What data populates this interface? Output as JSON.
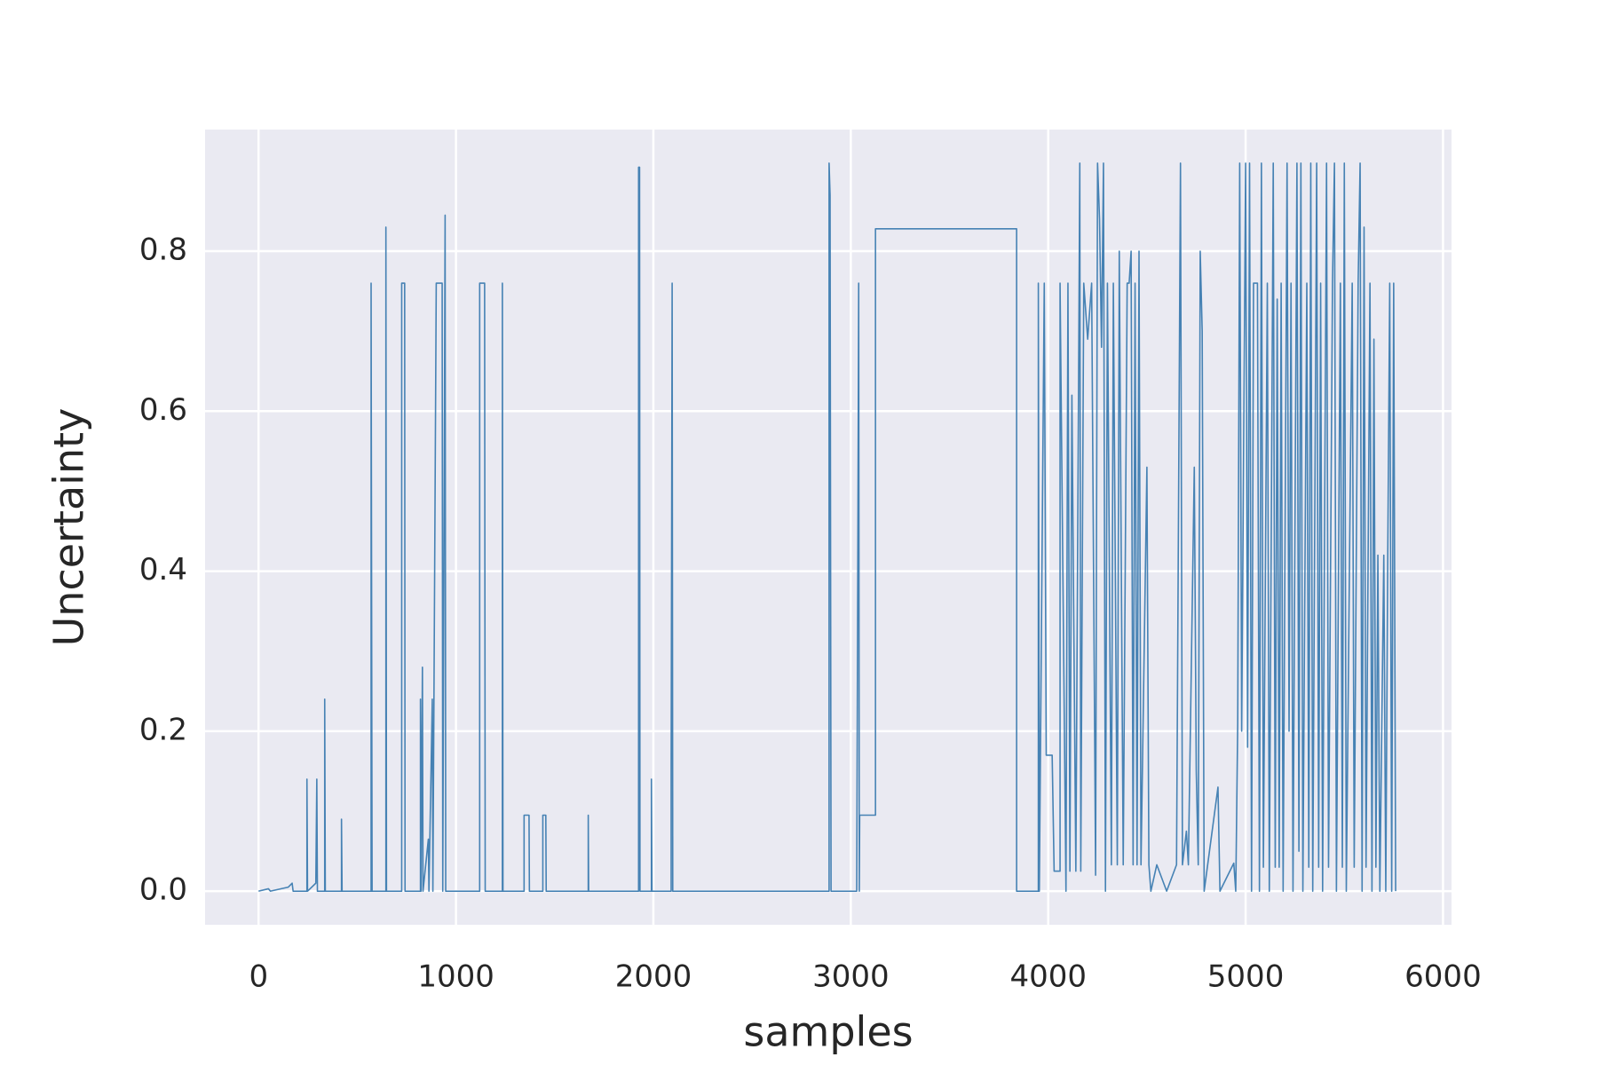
{
  "chart_data": {
    "type": "line",
    "xlabel": "samples",
    "ylabel": "Uncertainty",
    "xlim": [
      -271,
      6043
    ],
    "ylim": [
      -0.042,
      0.952
    ],
    "xticks": [
      0,
      1000,
      2000,
      3000,
      4000,
      5000,
      6000
    ],
    "yticks": [
      {
        "value": 0,
        "label": "0.0"
      },
      0.2,
      0.4,
      0.6,
      0.8
    ],
    "grid": true,
    "series": [
      {
        "color": "#4682b4",
        "x": [
          0,
          50,
          60,
          150,
          170,
          175,
          245,
          245,
          248,
          290,
          295,
          298,
          335,
          335,
          338,
          420,
          420,
          423,
          570,
          570,
          575,
          645,
          645,
          648,
          725,
          725,
          740,
          742,
          820,
          820,
          823,
          830,
          833,
          860,
          863,
          880,
          883,
          900,
          930,
          933,
          945,
          948,
          1120,
          1120,
          1145,
          1148,
          1235,
          1235,
          1238,
          1345,
          1345,
          1370,
          1372,
          1440,
          1440,
          1455,
          1457,
          1670,
          1670,
          1672,
          1925,
          1925,
          1930,
          1932,
          1990,
          1990,
          1993,
          2090,
          2090,
          2095,
          2098,
          2890,
          2890,
          2895,
          2900,
          3030,
          3040,
          3043,
          3045,
          3125,
          3125,
          3840,
          3840,
          3950,
          3950,
          3955,
          3980,
          3990,
          4020,
          4030,
          4060,
          4060,
          4090,
          4100,
          4110,
          4120,
          4140,
          4160,
          4165,
          4180,
          4200,
          4220,
          4240,
          4250,
          4260,
          4270,
          4280,
          4290,
          4300,
          4320,
          4330,
          4350,
          4360,
          4380,
          4400,
          4410,
          4420,
          4430,
          4440,
          4450,
          4460,
          4470,
          4500,
          4510,
          4520,
          4550,
          4600,
          4650,
          4670,
          4680,
          4700,
          4710,
          4740,
          4750,
          4760,
          4770,
          4780,
          4790,
          4860,
          4870,
          4940,
          4950,
          4960,
          4970,
          4980,
          5000,
          5010,
          5020,
          5030,
          5040,
          5060,
          5070,
          5080,
          5090,
          5110,
          5120,
          5140,
          5150,
          5160,
          5170,
          5180,
          5190,
          5210,
          5220,
          5230,
          5240,
          5260,
          5270,
          5280,
          5290,
          5310,
          5320,
          5330,
          5340,
          5360,
          5370,
          5380,
          5390,
          5410,
          5420,
          5440,
          5450,
          5460,
          5480,
          5490,
          5500,
          5510,
          5540,
          5550,
          5570,
          5580,
          5590,
          5600,
          5610,
          5630,
          5640,
          5650,
          5660,
          5670,
          5680,
          5700,
          5710,
          5720,
          5730,
          5740,
          5750,
          5760
        ],
        "values": [
          0,
          0.003,
          0,
          0.005,
          0.01,
          0,
          0,
          0.14,
          0,
          0.01,
          0.14,
          0,
          0,
          0.24,
          0,
          0,
          0.09,
          0,
          0,
          0.76,
          0,
          0,
          0.83,
          0,
          0,
          0.76,
          0.76,
          0,
          0,
          0.24,
          0,
          0.28,
          0,
          0.065,
          0,
          0.24,
          0,
          0.76,
          0.76,
          0,
          0.845,
          0,
          0,
          0.76,
          0.76,
          0,
          0,
          0.76,
          0,
          0,
          0.095,
          0.095,
          0,
          0,
          0.095,
          0.095,
          0,
          0,
          0.095,
          0,
          0,
          0.905,
          0.905,
          0,
          0,
          0.14,
          0,
          0,
          0.15,
          0.76,
          0,
          0,
          0.91,
          0.87,
          0,
          0,
          0.76,
          0,
          0.095,
          0.095,
          0.828,
          0.828,
          0,
          0,
          0.76,
          0,
          0.76,
          0.17,
          0.17,
          0.025,
          0.025,
          0.76,
          0,
          0.76,
          0.025,
          0.62,
          0.025,
          0.91,
          0.025,
          0.76,
          0.69,
          0.76,
          0.02,
          0.91,
          0.84,
          0.68,
          0.91,
          0,
          0.76,
          0.033,
          0.76,
          0.033,
          0.8,
          0.033,
          0.76,
          0.76,
          0.8,
          0.033,
          0.76,
          0.033,
          0.8,
          0.033,
          0.53,
          0.033,
          0,
          0.033,
          0,
          0.033,
          0.91,
          0.033,
          0.075,
          0.033,
          0.53,
          0.15,
          0.033,
          0.8,
          0.7,
          0,
          0.13,
          0,
          0.035,
          0,
          0.21,
          0.91,
          0.2,
          0.91,
          0.18,
          0.91,
          0,
          0.76,
          0.76,
          0,
          0.91,
          0.03,
          0.76,
          0,
          0.91,
          0.03,
          0.74,
          0.03,
          0.76,
          0,
          0.91,
          0.2,
          0.76,
          0,
          0.91,
          0.05,
          0.91,
          0,
          0.76,
          0.03,
          0.91,
          0,
          0.91,
          0.03,
          0.76,
          0,
          0.91,
          0.03,
          0.76,
          0.91,
          0,
          0.76,
          0.03,
          0.91,
          0,
          0.76,
          0.03,
          0.76,
          0.91,
          0,
          0.83,
          0.03,
          0.76,
          0,
          0.69,
          0.03,
          0.42,
          0,
          0.42,
          0,
          0.42,
          0.76,
          0,
          0.76,
          0
        ]
      }
    ]
  }
}
